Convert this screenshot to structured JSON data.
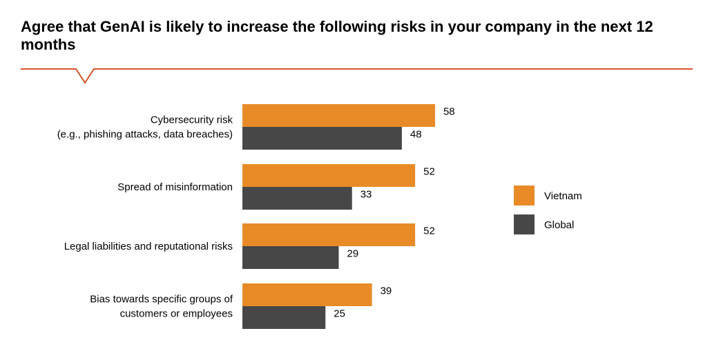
{
  "title": "Agree that GenAI is likely to increase the following risks in your company in the next 12 months",
  "colors": {
    "accent_line": "#d9532b",
    "vietnam": "#e88b27",
    "global": "#474747"
  },
  "chart_data": {
    "type": "bar",
    "orientation": "horizontal",
    "title": "Agree that GenAI is likely to increase the following risks in your company in the next 12 months",
    "xlabel": "",
    "ylabel": "",
    "xlim": [
      0,
      100
    ],
    "grid": false,
    "legend_position": "right",
    "categories": [
      [
        "Cybersecurity risk",
        "(e.g., phishing attacks, data breaches)"
      ],
      [
        "Spread of misinformation"
      ],
      [
        "Legal liabilities and reputational risks"
      ],
      [
        "Bias towards specific groups of",
        "customers or employees"
      ]
    ],
    "series": [
      {
        "name": "Vietnam",
        "color": "#e88b27",
        "values": [
          58,
          52,
          52,
          39
        ]
      },
      {
        "name": "Global",
        "color": "#474747",
        "values": [
          48,
          33,
          29,
          25
        ]
      }
    ]
  }
}
